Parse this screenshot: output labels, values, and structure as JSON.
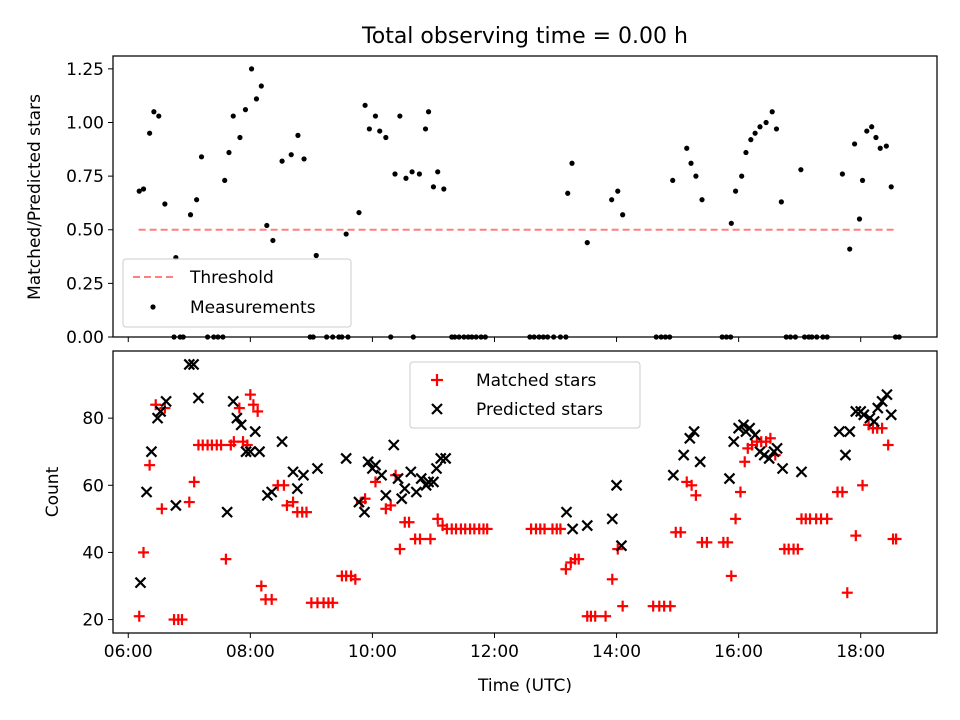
{
  "figure": {
    "title": "Total observing time = 0.00 h",
    "xlabel": "Time (UTC)"
  },
  "chart_data": [
    {
      "type": "scatter",
      "ylabel": "Matched/Predicted stars",
      "xlim": [
        5.75,
        19.25
      ],
      "ylim": [
        0.0,
        1.31
      ],
      "yticks": [
        0.0,
        0.25,
        0.5,
        0.75,
        1.0,
        1.25
      ],
      "xticks": [
        "06:00",
        "08:00",
        "10:00",
        "12:00",
        "14:00",
        "16:00",
        "18:00"
      ],
      "xtick_values": [
        6,
        8,
        10,
        12,
        14,
        16,
        18
      ],
      "legend": {
        "position": "lower-left"
      },
      "series": [
        {
          "name": "Threshold",
          "kind": "line",
          "style": "dashed",
          "color": "#ff7f7f",
          "x": [
            6.17,
            18.6
          ],
          "y": [
            0.5,
            0.5
          ]
        },
        {
          "name": "Measurements",
          "kind": "scatter",
          "color": "#000000",
          "x": [
            6.18,
            6.25,
            6.35,
            6.42,
            6.5,
            6.6,
            6.78,
            7.02,
            7.12,
            7.2,
            7.58,
            7.65,
            7.72,
            7.83,
            7.92,
            8.02,
            8.1,
            8.18,
            8.27,
            8.37,
            8.52,
            8.67,
            8.78,
            8.88,
            9.08,
            9.57,
            9.78,
            9.88,
            9.95,
            10.05,
            10.12,
            10.22,
            10.37,
            10.45,
            10.55,
            10.65,
            10.77,
            10.87,
            10.92,
            11.0,
            11.07,
            11.17,
            13.2,
            13.27,
            13.52,
            13.92,
            14.02,
            14.1,
            14.92,
            15.15,
            15.22,
            15.3,
            15.4,
            15.88,
            15.95,
            16.05,
            16.12,
            16.2,
            16.27,
            16.35,
            16.45,
            16.55,
            16.62,
            16.7,
            17.02,
            17.7,
            17.82,
            17.9,
            17.98,
            18.03,
            18.1,
            18.18,
            18.25,
            18.32,
            18.42,
            18.5,
            18.57,
            6.75,
            6.85,
            6.9,
            7.3,
            7.4,
            7.47,
            7.55,
            8.98,
            9.03,
            9.25,
            9.35,
            9.45,
            9.5,
            9.6,
            10.3,
            10.67,
            11.3,
            11.35,
            11.42,
            11.5,
            11.57,
            11.63,
            11.7,
            11.78,
            11.85,
            12.58,
            12.65,
            12.73,
            12.8,
            12.87,
            12.97,
            13.08,
            13.17,
            14.65,
            14.73,
            14.8,
            14.87,
            15.73,
            15.8,
            15.87,
            16.78,
            16.85,
            16.93,
            17.08,
            17.15,
            17.2,
            17.28,
            17.38,
            17.45,
            18.63
          ],
          "y": [
            0.68,
            0.69,
            0.95,
            1.05,
            1.03,
            0.62,
            0.37,
            0.57,
            0.64,
            0.84,
            0.73,
            0.86,
            1.03,
            0.93,
            1.06,
            1.25,
            1.11,
            1.17,
            0.52,
            0.45,
            0.82,
            0.85,
            0.94,
            0.83,
            0.38,
            0.48,
            0.58,
            1.08,
            0.97,
            1.03,
            0.96,
            0.93,
            0.76,
            1.03,
            0.74,
            0.77,
            0.76,
            0.97,
            1.05,
            0.7,
            0.77,
            0.69,
            0.67,
            0.81,
            0.44,
            0.64,
            0.68,
            0.57,
            0.73,
            0.88,
            0.81,
            0.75,
            0.64,
            0.53,
            0.68,
            0.75,
            0.86,
            0.92,
            0.95,
            0.98,
            1.0,
            1.05,
            0.97,
            0.63,
            0.78,
            0.76,
            0.41,
            0.9,
            0.55,
            0.73,
            0.96,
            0.98,
            0.93,
            0.88,
            0.89,
            0.7,
            0.0,
            0.0,
            0.0,
            0.0,
            0.0,
            0.0,
            0.0,
            0.0,
            0.0,
            0.0,
            0.0,
            0.0,
            0.0,
            0.0,
            0.0,
            0.0,
            0.0,
            0.0,
            0.0,
            0.0,
            0.0,
            0.0,
            0.0,
            0.0,
            0.0,
            0.0,
            0.0,
            0.0,
            0.0,
            0.0,
            0.0,
            0.0,
            0.0,
            0.0,
            0.0,
            0.0,
            0.0,
            0.0,
            0.0,
            0.0,
            0.0,
            0.0,
            0.0,
            0.0,
            0.0,
            0.0,
            0.0,
            0.0,
            0.0,
            0.0,
            0.0
          ]
        }
      ]
    },
    {
      "type": "scatter",
      "ylabel": "Count",
      "xlim": [
        5.75,
        19.25
      ],
      "ylim": [
        16.0,
        100.0
      ],
      "yticks": [
        20,
        40,
        60,
        80
      ],
      "xticks": [
        "06:00",
        "08:00",
        "10:00",
        "12:00",
        "14:00",
        "16:00",
        "18:00"
      ],
      "xtick_values": [
        6,
        8,
        10,
        12,
        14,
        16,
        18
      ],
      "legend": {
        "position": "top-center"
      },
      "series": [
        {
          "name": "Matched stars",
          "marker": "plus",
          "color": "#ff0000",
          "x": [
            6.18,
            6.25,
            6.35,
            6.45,
            6.55,
            6.6,
            6.75,
            6.82,
            6.88,
            7.0,
            7.08,
            7.15,
            7.22,
            7.3,
            7.37,
            7.45,
            7.52,
            7.6,
            7.68,
            7.73,
            7.82,
            7.88,
            7.95,
            8.0,
            8.05,
            8.12,
            8.18,
            8.25,
            8.35,
            8.45,
            8.55,
            8.6,
            8.7,
            8.77,
            8.85,
            8.92,
            9.0,
            9.1,
            9.2,
            9.28,
            9.35,
            9.5,
            9.57,
            9.65,
            9.72,
            9.82,
            9.88,
            10.05,
            10.22,
            10.3,
            10.38,
            10.45,
            10.53,
            10.6,
            10.7,
            10.78,
            10.95,
            11.07,
            11.15,
            11.22,
            11.3,
            11.37,
            11.45,
            11.52,
            11.6,
            11.67,
            11.75,
            11.82,
            11.88,
            12.6,
            12.68,
            12.75,
            12.82,
            12.95,
            13.02,
            13.08,
            13.17,
            13.25,
            13.32,
            13.38,
            13.52,
            13.58,
            13.65,
            13.82,
            13.93,
            14.02,
            14.1,
            14.6,
            14.7,
            14.78,
            14.88,
            14.97,
            15.05,
            15.15,
            15.23,
            15.3,
            15.4,
            15.48,
            15.75,
            15.82,
            15.88,
            15.95,
            16.03,
            16.1,
            16.15,
            16.22,
            16.3,
            16.37,
            16.45,
            16.52,
            16.6,
            16.75,
            16.82,
            16.9,
            16.97,
            17.03,
            17.1,
            17.17,
            17.27,
            17.35,
            17.45,
            17.62,
            17.7,
            17.78,
            17.92,
            18.03,
            18.13,
            18.2,
            18.27,
            18.35,
            18.45,
            18.53,
            18.58
          ],
          "y": [
            21,
            40,
            66,
            84,
            53,
            83,
            20,
            20,
            20,
            55,
            61,
            72,
            72,
            72,
            72,
            72,
            72,
            38,
            72,
            73,
            83,
            73,
            72,
            87,
            84,
            82,
            30,
            26,
            26,
            60,
            60,
            54,
            55,
            52,
            52,
            52,
            25,
            25,
            25,
            25,
            25,
            33,
            33,
            33,
            32,
            55,
            56,
            61,
            53,
            54,
            63,
            41,
            49,
            49,
            44,
            44,
            44,
            50,
            48,
            47,
            47,
            47,
            47,
            47,
            47,
            47,
            47,
            47,
            47,
            47,
            47,
            47,
            47,
            47,
            47,
            47,
            35,
            37,
            38,
            38,
            21,
            21,
            21,
            21,
            32,
            41,
            24,
            24,
            24,
            24,
            24,
            46,
            46,
            61,
            60,
            57,
            43,
            43,
            43,
            43,
            33,
            50,
            58,
            67,
            71,
            72,
            73,
            73,
            73,
            74,
            69,
            41,
            41,
            41,
            41,
            50,
            50,
            50,
            50,
            50,
            50,
            58,
            58,
            28,
            45,
            60,
            78,
            77,
            77,
            77,
            72,
            44,
            44
          ]
        },
        {
          "name": "Predicted stars",
          "marker": "x",
          "color": "#000000",
          "x": [
            6.2,
            6.3,
            6.38,
            6.48,
            6.53,
            6.62,
            6.78,
            7.0,
            7.07,
            7.15,
            7.62,
            7.72,
            7.78,
            7.85,
            7.93,
            8.0,
            8.08,
            8.15,
            8.28,
            8.35,
            8.52,
            8.7,
            8.77,
            8.87,
            9.1,
            9.57,
            9.78,
            9.87,
            9.93,
            10.0,
            10.05,
            10.15,
            10.22,
            10.35,
            10.42,
            10.48,
            10.53,
            10.63,
            10.72,
            10.8,
            10.88,
            10.92,
            11.0,
            11.05,
            11.12,
            11.2,
            13.18,
            13.28,
            13.52,
            13.93,
            14.0,
            14.08,
            14.93,
            15.1,
            15.2,
            15.27,
            15.37,
            15.85,
            15.92,
            16.0,
            16.08,
            16.12,
            16.18,
            16.27,
            16.35,
            16.42,
            16.5,
            16.58,
            16.63,
            16.72,
            17.03,
            17.65,
            17.75,
            17.82,
            17.92,
            18.0,
            18.05,
            18.15,
            18.22,
            18.28,
            18.35,
            18.43,
            18.5
          ],
          "y": [
            31,
            58,
            70,
            80,
            82,
            85,
            54,
            96,
            96,
            86,
            52,
            85,
            80,
            78,
            70,
            70,
            76,
            70,
            57,
            58,
            73,
            64,
            59,
            63,
            65,
            68,
            55,
            52,
            67,
            65,
            66,
            63,
            57,
            72,
            62,
            56,
            59,
            64,
            58,
            62,
            60,
            61,
            61,
            65,
            68,
            68,
            52,
            47,
            48,
            50,
            60,
            42,
            63,
            69,
            74,
            76,
            67,
            62,
            73,
            77,
            78,
            76,
            77,
            75,
            70,
            69,
            68,
            70,
            71,
            65,
            64,
            76,
            69,
            76,
            82,
            82,
            81,
            80,
            79,
            83,
            85,
            87,
            81
          ]
        }
      ]
    }
  ]
}
